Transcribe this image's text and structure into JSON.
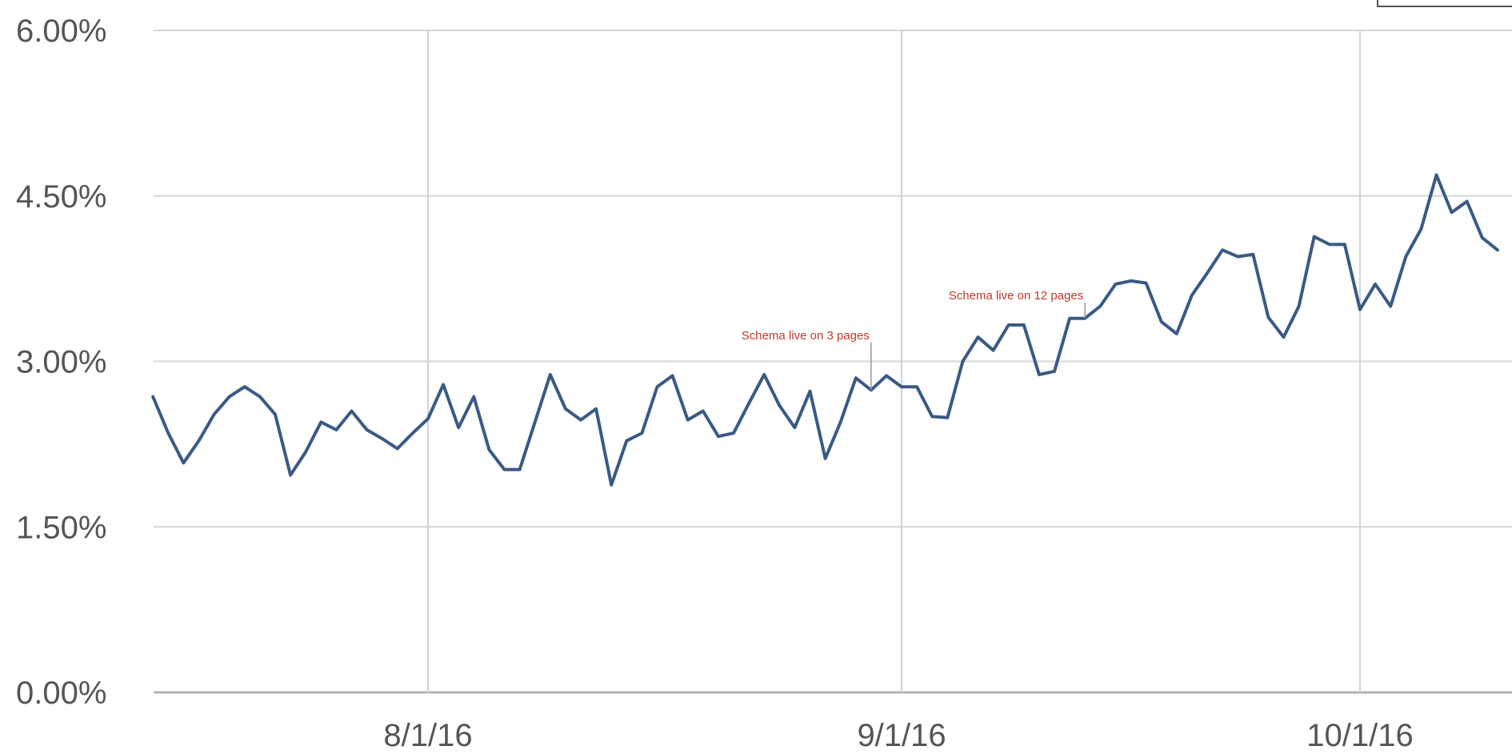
{
  "chart_data": {
    "type": "line",
    "y_tick_labels": [
      "0.00%",
      "1.50%",
      "3.00%",
      "4.50%",
      "6.00%"
    ],
    "x_tick_labels": [
      "8/1/16",
      "9/1/16",
      "10/1/16"
    ],
    "x_ticks": [
      "2016-08-01",
      "2016-09-01",
      "2016-10-01"
    ],
    "x_range": [
      "2016-07-14",
      "2016-10-10"
    ],
    "ylim": [
      0,
      6
    ],
    "y_unit": "%",
    "grid": true,
    "color": "#3a5a85",
    "series": [
      {
        "x": [
          "2016-07-14",
          "2016-07-15",
          "2016-07-16",
          "2016-07-17",
          "2016-07-18",
          "2016-07-19",
          "2016-07-20",
          "2016-07-21",
          "2016-07-22",
          "2016-07-23",
          "2016-07-24",
          "2016-07-25",
          "2016-07-26",
          "2016-07-27",
          "2016-07-28",
          "2016-07-29",
          "2016-07-30",
          "2016-07-31",
          "2016-08-01",
          "2016-08-02",
          "2016-08-03",
          "2016-08-04",
          "2016-08-05",
          "2016-08-06",
          "2016-08-07",
          "2016-08-08",
          "2016-08-09",
          "2016-08-10",
          "2016-08-11",
          "2016-08-12",
          "2016-08-13",
          "2016-08-14",
          "2016-08-15",
          "2016-08-16",
          "2016-08-17",
          "2016-08-18",
          "2016-08-19",
          "2016-08-20",
          "2016-08-21",
          "2016-08-22",
          "2016-08-23",
          "2016-08-24",
          "2016-08-25",
          "2016-08-26",
          "2016-08-27",
          "2016-08-28",
          "2016-08-29",
          "2016-08-30",
          "2016-08-31",
          "2016-09-01",
          "2016-09-02",
          "2016-09-03",
          "2016-09-04",
          "2016-09-05",
          "2016-09-06",
          "2016-09-07",
          "2016-09-08",
          "2016-09-09",
          "2016-09-10",
          "2016-09-11",
          "2016-09-12",
          "2016-09-13",
          "2016-09-14",
          "2016-09-15",
          "2016-09-16",
          "2016-09-17",
          "2016-09-18",
          "2016-09-19",
          "2016-09-20",
          "2016-09-21",
          "2016-09-22",
          "2016-09-23",
          "2016-09-24",
          "2016-09-25",
          "2016-09-26",
          "2016-09-27",
          "2016-09-28",
          "2016-09-29",
          "2016-09-30",
          "2016-10-01",
          "2016-10-02",
          "2016-10-03",
          "2016-10-04",
          "2016-10-05",
          "2016-10-06",
          "2016-10-07",
          "2016-10-08",
          "2016-10-09",
          "2016-10-10"
        ],
        "values": [
          2.68,
          2.35,
          2.08,
          2.28,
          2.52,
          2.68,
          2.77,
          2.68,
          2.52,
          1.97,
          2.18,
          2.45,
          2.38,
          2.55,
          2.38,
          2.3,
          2.21,
          2.35,
          2.48,
          2.79,
          2.4,
          2.68,
          2.2,
          2.02,
          2.02,
          2.45,
          2.88,
          2.57,
          2.47,
          2.57,
          1.88,
          2.28,
          2.35,
          2.77,
          2.87,
          2.47,
          2.55,
          2.32,
          2.35,
          2.62,
          2.88,
          2.6,
          2.4,
          2.73,
          2.12,
          2.45,
          2.85,
          2.74,
          2.87,
          2.77,
          2.77,
          2.5,
          2.49,
          3.0,
          3.22,
          3.1,
          3.33,
          3.33,
          2.88,
          2.91,
          3.39,
          3.39,
          3.5,
          3.7,
          3.73,
          3.71,
          3.36,
          3.25,
          3.6,
          3.8,
          4.01,
          3.95,
          3.97,
          3.4,
          3.22,
          3.5,
          4.13,
          4.06,
          4.06,
          3.47,
          3.7,
          3.5,
          3.95,
          4.2,
          4.69,
          4.35,
          4.45,
          4.12,
          4.01
        ]
      }
    ],
    "annotations": [
      {
        "date": "2016-08-30",
        "text": "Schema live on 3 pages"
      },
      {
        "date": "2016-09-13",
        "text": "Schema live on 12 pages"
      }
    ]
  }
}
